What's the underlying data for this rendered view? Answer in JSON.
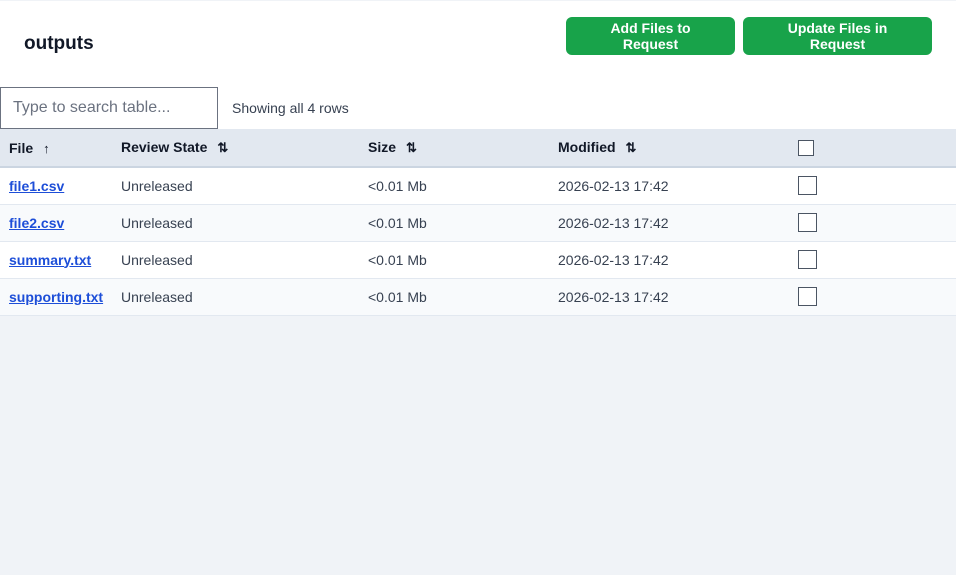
{
  "title": "outputs",
  "buttons": {
    "add": "Add Files to Request",
    "update": "Update Files in Request"
  },
  "accent": "#18a34a",
  "search": {
    "placeholder": "Type to search table...",
    "value": ""
  },
  "row_count": "Showing all 4 rows",
  "columns": [
    {
      "label": "File",
      "sort": "↑",
      "sort_icon": "arrow-up-icon"
    },
    {
      "label": "Review State",
      "sort": "⇅",
      "sort_icon": "sort-icon"
    },
    {
      "label": "Size",
      "sort": "⇅",
      "sort_icon": "sort-icon"
    },
    {
      "label": "Modified",
      "sort": "⇅",
      "sort_icon": "sort-icon"
    }
  ],
  "rows": [
    {
      "file": "file1.csv",
      "state": "Unreleased",
      "size": "<0.01 Mb",
      "modified": "2026-02-13 17:42",
      "checked": false
    },
    {
      "file": "file2.csv",
      "state": "Unreleased",
      "size": "<0.01 Mb",
      "modified": "2026-02-13 17:42",
      "checked": false
    },
    {
      "file": "summary.txt",
      "state": "Unreleased",
      "size": "<0.01 Mb",
      "modified": "2026-02-13 17:42",
      "checked": false
    },
    {
      "file": "supporting.txt",
      "state": "Unreleased",
      "size": "<0.01 Mb",
      "modified": "2026-02-13 17:42",
      "checked": false
    }
  ]
}
